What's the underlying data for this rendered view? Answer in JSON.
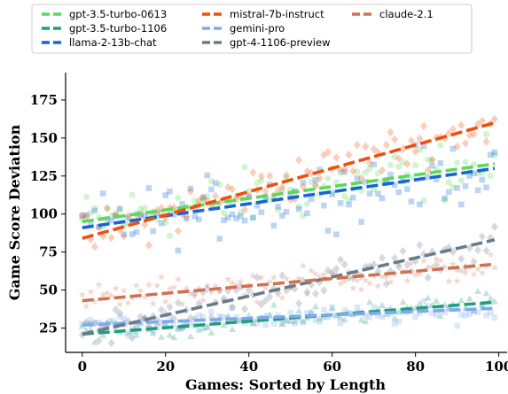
{
  "chart_data": {
    "type": "scatter",
    "title": "",
    "xlabel": "Games: Sorted by Length",
    "ylabel": "Game Score Deviation",
    "xlim": [
      -4,
      102
    ],
    "ylim": [
      9,
      193
    ],
    "xticks": [
      0,
      20,
      40,
      60,
      80,
      100
    ],
    "yticks": [
      25,
      50,
      75,
      100,
      125,
      150,
      175
    ],
    "grid": false,
    "legend_position": "top",
    "series": [
      {
        "name": "gpt-3.5-turbo-0613",
        "color": "#5ad95a",
        "marker": "circle",
        "trend": [
          95,
          133
        ],
        "scatter_center": [
          95,
          133
        ],
        "scatter_spread": 28
      },
      {
        "name": "gpt-3.5-turbo-1106",
        "color": "#1f9e7a",
        "marker": "triangle",
        "trend": [
          21,
          42
        ],
        "scatter_center": [
          22,
          42
        ],
        "scatter_spread": 10
      },
      {
        "name": "llama-2-13b-chat",
        "color": "#1565d8",
        "marker": "square",
        "trend": [
          91,
          130
        ],
        "scatter_center": [
          91,
          130
        ],
        "scatter_spread": 30
      },
      {
        "name": "mistral-7b-instruct",
        "color": "#f04e0a",
        "marker": "diamond",
        "trend": [
          84,
          160
        ],
        "scatter_center": [
          84,
          160
        ],
        "scatter_spread": 22
      },
      {
        "name": "gemini-pro",
        "color": "#7ea8ef",
        "marker": "square",
        "trend": [
          27,
          38
        ],
        "scatter_center": [
          27,
          36
        ],
        "scatter_spread": 10
      },
      {
        "name": "gpt-4-1106-preview",
        "color": "#6a7b8a",
        "marker": "diamond",
        "trend": [
          21,
          83
        ],
        "scatter_center": [
          24,
          80
        ],
        "scatter_spread": 18
      },
      {
        "name": "claude-2.1",
        "color": "#d27050",
        "marker": "star",
        "trend": [
          43,
          67
        ],
        "scatter_center": [
          44,
          66
        ],
        "scatter_spread": 14
      }
    ]
  }
}
